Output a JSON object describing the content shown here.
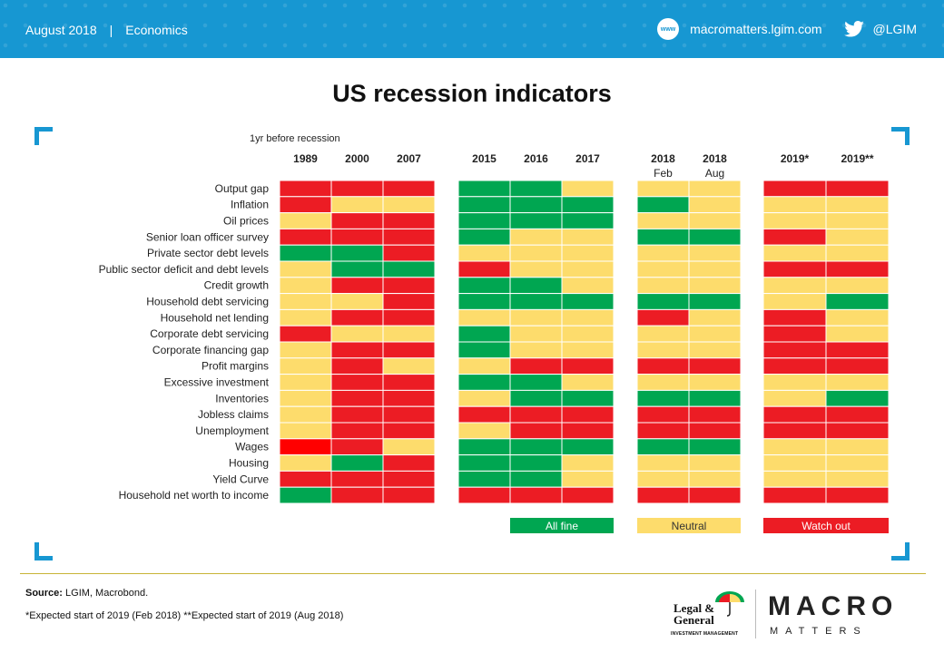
{
  "header": {
    "date": "August 2018",
    "separator": "|",
    "category": "Economics",
    "website_icon": "www",
    "website": "macromatters.lgim.com",
    "twitter_icon": "twitter-icon",
    "twitter": "@LGIM"
  },
  "title": "US recession indicators",
  "chart_data": {
    "type": "heatmap",
    "title": "US recession indicators",
    "annotation": "1yr before recession",
    "columns": [
      {
        "label": "1989",
        "sub": ""
      },
      {
        "label": "2000",
        "sub": ""
      },
      {
        "label": "2007",
        "sub": ""
      },
      {
        "label": "2015",
        "sub": ""
      },
      {
        "label": "2016",
        "sub": ""
      },
      {
        "label": "2017",
        "sub": ""
      },
      {
        "label": "2018",
        "sub": "Feb"
      },
      {
        "label": "2018",
        "sub": "Aug"
      },
      {
        "label": "2019*",
        "sub": ""
      },
      {
        "label": "2019**",
        "sub": ""
      }
    ],
    "groups": [
      [
        0,
        1,
        2
      ],
      [
        3,
        4,
        5
      ],
      [
        6,
        7
      ],
      [
        8,
        9
      ]
    ],
    "rows": [
      "Output gap",
      "Inflation",
      "Oil prices",
      "Senior loan officer survey",
      "Private sector debt levels",
      "Public sector deficit and debt levels",
      "Credit growth",
      "Household debt servicing",
      "Household net lending",
      "Corporate  debt servicing",
      "Corporate  financing gap",
      "Profit margins",
      "Excessive investment",
      "Inventories",
      "Jobless claims",
      "Unemployment",
      "Wages",
      "Housing",
      "Yield Curve",
      "Household  net worth to income"
    ],
    "values": [
      [
        "R",
        "R",
        "R",
        "G",
        "G",
        "Y",
        "Y",
        "Y",
        "R",
        "R"
      ],
      [
        "R",
        "Y",
        "Y",
        "G",
        "G",
        "G",
        "G",
        "Y",
        "Y",
        "Y"
      ],
      [
        "Y",
        "R",
        "R",
        "G",
        "G",
        "G",
        "Y",
        "Y",
        "Y",
        "Y"
      ],
      [
        "R",
        "R",
        "R",
        "G",
        "Y",
        "Y",
        "G",
        "G",
        "R",
        "Y"
      ],
      [
        "G",
        "G",
        "R",
        "Y",
        "Y",
        "Y",
        "Y",
        "Y",
        "Y",
        "Y"
      ],
      [
        "Y",
        "G",
        "G",
        "R",
        "Y",
        "Y",
        "Y",
        "Y",
        "R",
        "R"
      ],
      [
        "Y",
        "R",
        "R",
        "G",
        "G",
        "Y",
        "Y",
        "Y",
        "Y",
        "Y"
      ],
      [
        "Y",
        "Y",
        "R",
        "G",
        "G",
        "G",
        "G",
        "G",
        "Y",
        "G"
      ],
      [
        "Y",
        "R",
        "R",
        "Y",
        "Y",
        "Y",
        "R",
        "Y",
        "R",
        "Y"
      ],
      [
        "R",
        "Y",
        "Y",
        "G",
        "Y",
        "Y",
        "Y",
        "Y",
        "R",
        "Y"
      ],
      [
        "Y",
        "R",
        "R",
        "G",
        "Y",
        "Y",
        "Y",
        "Y",
        "R",
        "R"
      ],
      [
        "Y",
        "R",
        "Y",
        "Y",
        "R",
        "R",
        "R",
        "R",
        "R",
        "R"
      ],
      [
        "Y",
        "R",
        "R",
        "G",
        "G",
        "Y",
        "Y",
        "Y",
        "Y",
        "Y"
      ],
      [
        "Y",
        "R",
        "R",
        "Y",
        "G",
        "G",
        "G",
        "G",
        "Y",
        "G"
      ],
      [
        "Y",
        "R",
        "R",
        "R",
        "R",
        "R",
        "R",
        "R",
        "R",
        "R"
      ],
      [
        "Y",
        "R",
        "R",
        "Y",
        "R",
        "R",
        "R",
        "R",
        "R",
        "R"
      ],
      [
        "R",
        "R",
        "Y",
        "G",
        "G",
        "G",
        "G",
        "G",
        "Y",
        "Y"
      ],
      [
        "Y",
        "G",
        "R",
        "G",
        "G",
        "Y",
        "Y",
        "Y",
        "Y",
        "Y"
      ],
      [
        "R",
        "R",
        "R",
        "G",
        "G",
        "Y",
        "Y",
        "Y",
        "Y",
        "Y"
      ],
      [
        "G",
        "R",
        "R",
        "R",
        "R",
        "R",
        "R",
        "R",
        "R",
        "R"
      ]
    ],
    "legend": [
      {
        "key": "G",
        "label": "All fine",
        "color": "#00a651"
      },
      {
        "key": "Y",
        "label": "Neutral",
        "color": "#fddc6c"
      },
      {
        "key": "R",
        "label": "Watch out",
        "color": "#ec1c24"
      }
    ]
  },
  "colors": {
    "G": "#00a651",
    "Y": "#fddc6c",
    "R": "#ec1c24",
    "R_strong": "#ff0000",
    "brand_blue": "#1797d2"
  },
  "footer": {
    "source_label": "Source:",
    "source_text": "LGIM, Macrobond.",
    "footnote": "*Expected start of 2019 (Feb 2018)  **Expected start of 2019 (Aug 2018)",
    "lg_logo_line1": "Legal &",
    "lg_logo_line2": "General",
    "lg_logo_sub": "INVESTMENT MANAGEMENT",
    "mm_line1": "MACRO",
    "mm_line2": "MATTERS"
  }
}
